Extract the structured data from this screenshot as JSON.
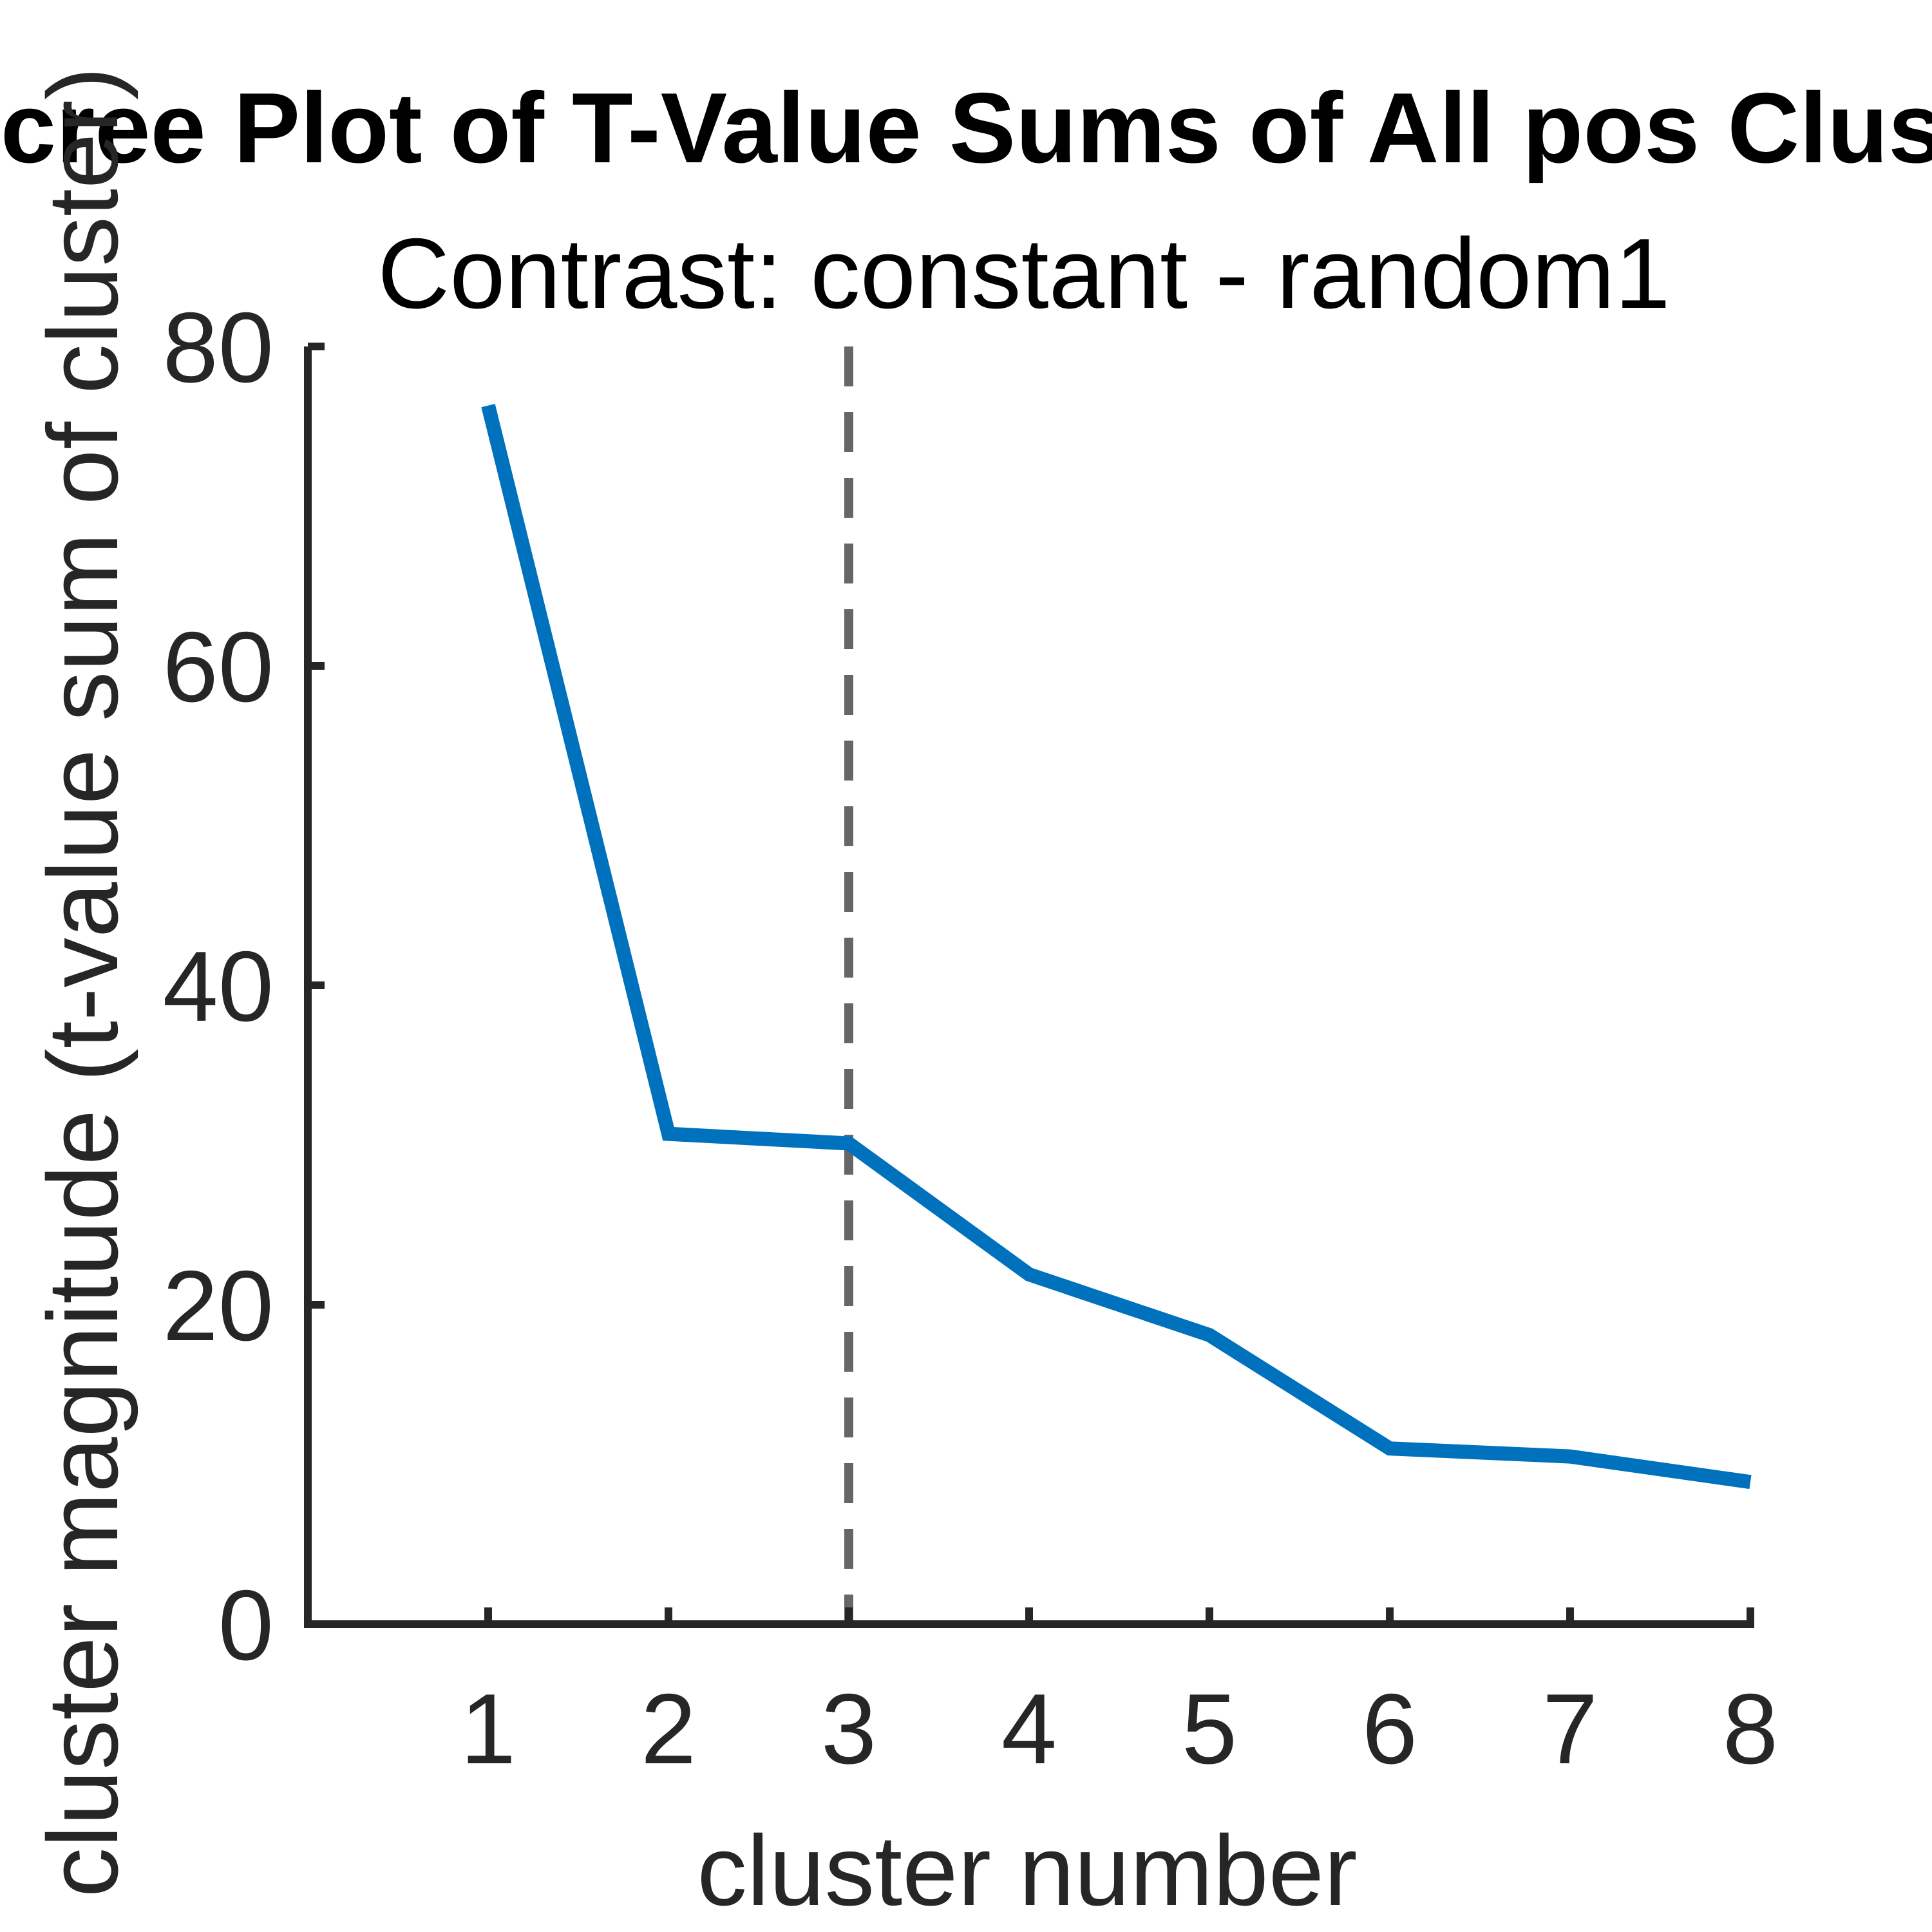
{
  "chart_data": {
    "type": "line",
    "title": "Scree Plot of T-Value Sums of All pos Clusters",
    "subtitle": "Contrast: constant - random1",
    "xlabel": "cluster number",
    "ylabel": "cluster magnitude (t-value sum of cluster)",
    "x": [
      1,
      2,
      3,
      4,
      5,
      6,
      7,
      8
    ],
    "xticks": [
      "1",
      "2",
      "3",
      "4",
      "5",
      "6",
      "7",
      "8"
    ],
    "yticks": [
      "0",
      "20",
      "40",
      "60",
      "80"
    ],
    "xlim": [
      0,
      8
    ],
    "ylim": [
      0,
      80
    ],
    "grid": false,
    "series": [
      {
        "values": [
          76.3,
          30.7,
          30.1,
          21.9,
          18.1,
          11.0,
          10.5,
          8.9
        ],
        "color": "#0072BD"
      }
    ],
    "vline": {
      "x": 3,
      "style": "dashed",
      "color": "#666666"
    },
    "axis_color": "#262626"
  }
}
